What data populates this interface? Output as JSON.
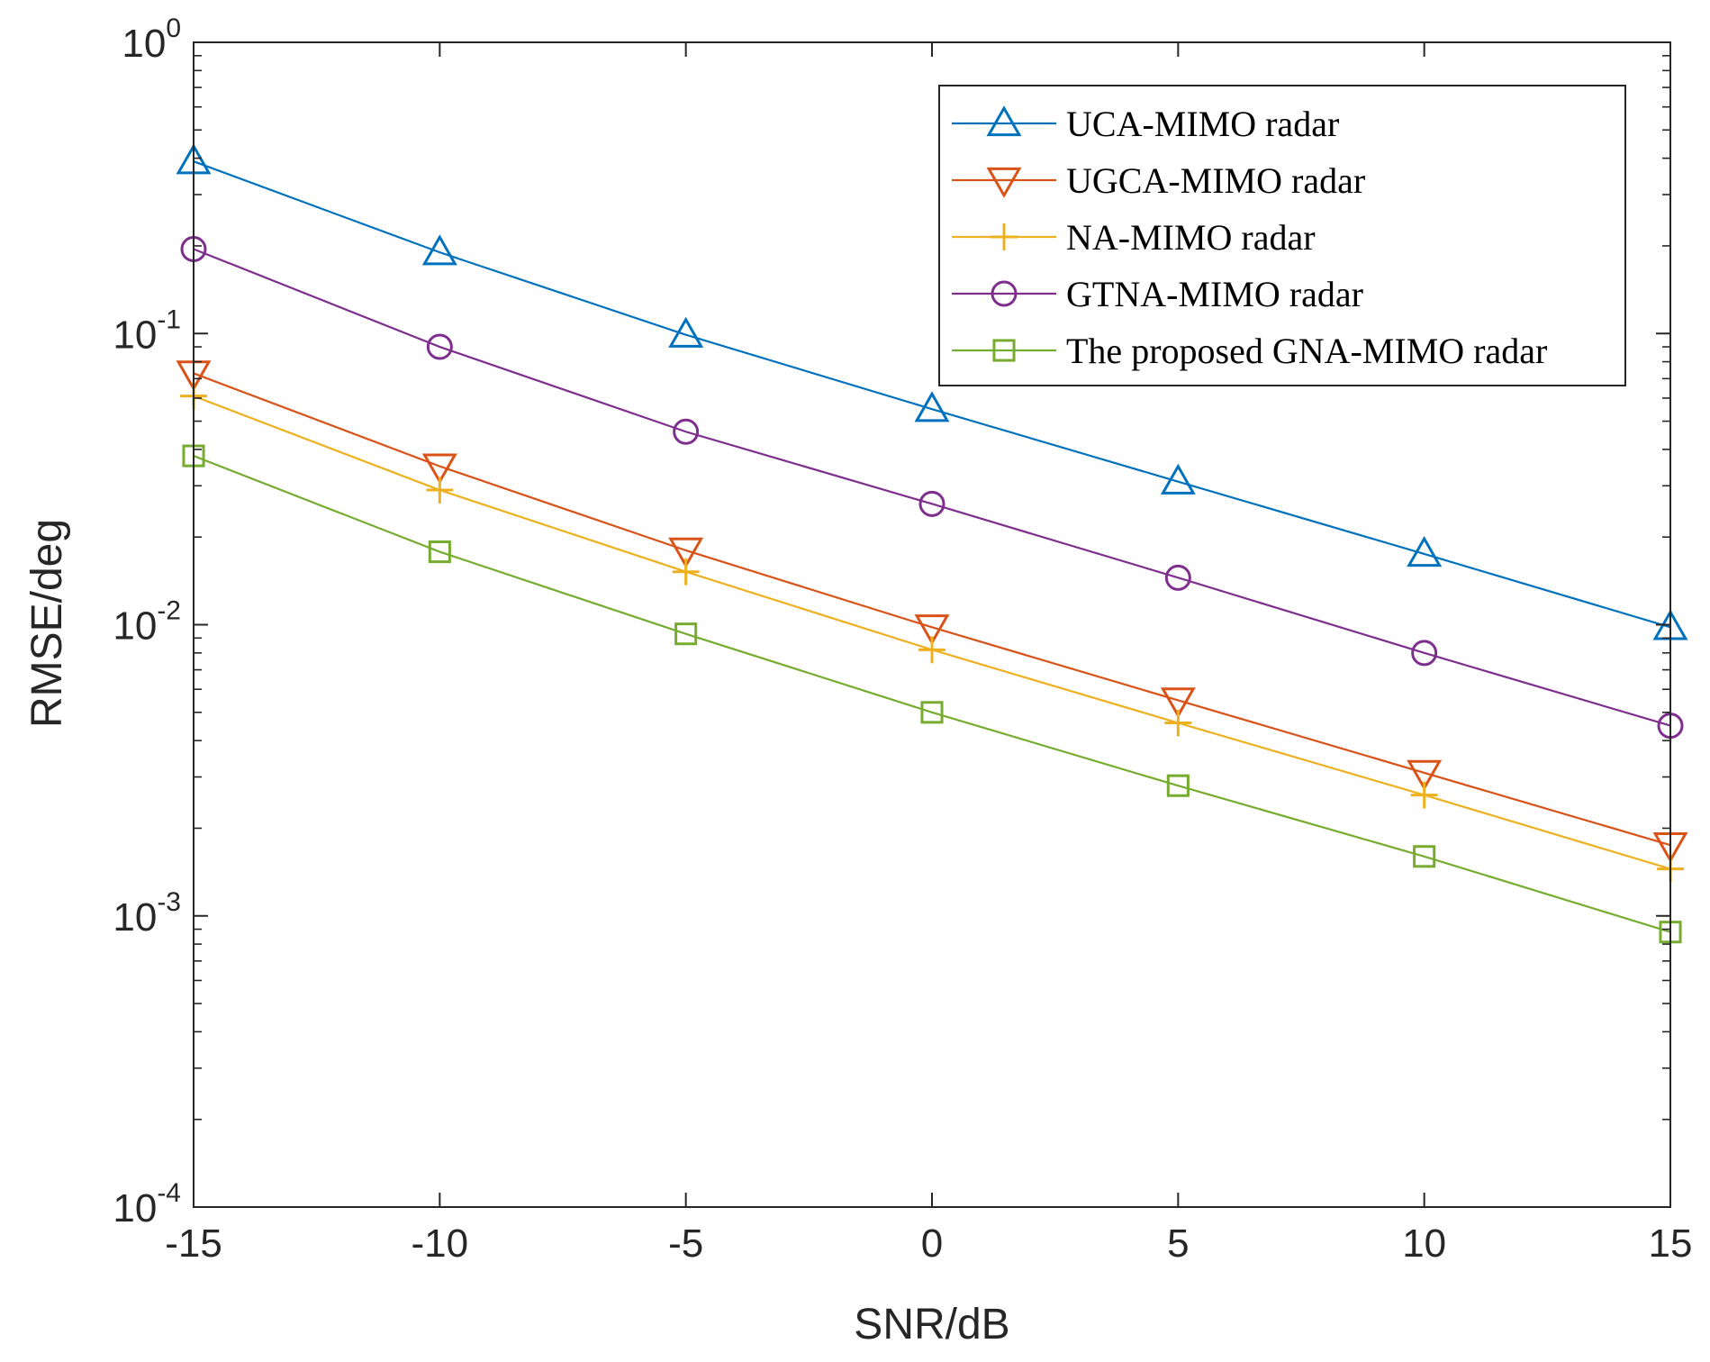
{
  "chart_data": {
    "type": "line",
    "xlabel": "SNR/dB",
    "ylabel": "RMSE/deg",
    "xlim": [
      -15,
      15
    ],
    "ylim": [
      0.0001,
      1
    ],
    "yscale": "log",
    "grid": false,
    "legend_position": "top-right",
    "x_ticks": [
      "-15",
      "-10",
      "-5",
      "0",
      "5",
      "10",
      "15"
    ],
    "y_ticks": [
      {
        "base": "10",
        "exp": "0",
        "value": 1
      },
      {
        "base": "10",
        "exp": "-1",
        "value": 0.1
      },
      {
        "base": "10",
        "exp": "-2",
        "value": 0.01
      },
      {
        "base": "10",
        "exp": "-3",
        "value": 0.001
      },
      {
        "base": "10",
        "exp": "-4",
        "value": 0.0001
      }
    ],
    "x": [
      -15,
      -10,
      -5,
      0,
      5,
      10,
      15
    ],
    "series": [
      {
        "name": "UCA-MIMO radar",
        "color": "#0072BD",
        "marker": "triangle-up",
        "values": [
          0.39,
          0.19,
          0.099,
          0.055,
          0.031,
          0.0175,
          0.0098
        ]
      },
      {
        "name": "UGCA-MIMO radar",
        "color": "#D95319",
        "marker": "triangle-down",
        "values": [
          0.073,
          0.035,
          0.018,
          0.0098,
          0.0055,
          0.0031,
          0.00175
        ]
      },
      {
        "name": "NA-MIMO radar",
        "color": "#EDB120",
        "marker": "plus",
        "values": [
          0.061,
          0.029,
          0.0152,
          0.0082,
          0.0046,
          0.0026,
          0.00145
        ]
      },
      {
        "name": "GTNA-MIMO radar",
        "color": "#7E2F8E",
        "marker": "circle",
        "values": [
          0.195,
          0.09,
          0.046,
          0.026,
          0.0145,
          0.008,
          0.0045
        ]
      },
      {
        "name": "The proposed GNA-MIMO radar",
        "color": "#77AC30",
        "marker": "square",
        "values": [
          0.038,
          0.0178,
          0.0093,
          0.005,
          0.0028,
          0.0016,
          0.00088
        ]
      }
    ]
  }
}
